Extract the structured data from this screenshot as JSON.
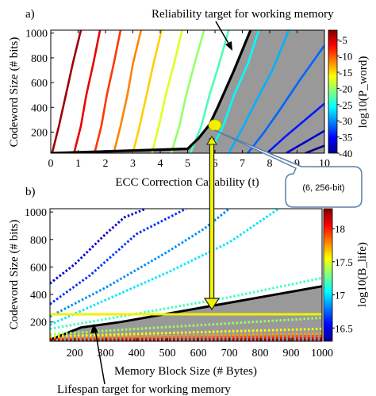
{
  "colors": {
    "shade": "#999999",
    "highlight": "#f2f200",
    "callout_stroke": "#5b7fa6"
  },
  "chart_data": [
    {
      "type": "line",
      "panel_label": "a)",
      "xlabel": "ECC Correction Capability (t)",
      "ylabel": "Codeword Size (# bits)",
      "xlim": [
        0,
        10
      ],
      "ylim": [
        30,
        1024
      ],
      "xticks": [
        0,
        1,
        2,
        3,
        4,
        5,
        6,
        7,
        8,
        9,
        10
      ],
      "yticks": [
        200,
        400,
        600,
        800,
        1000
      ],
      "colorbar": {
        "label": "log10(P_word)",
        "range": [
          -40,
          -2
        ],
        "ticks": [
          -5,
          -10,
          -15,
          -20,
          -25,
          -30,
          -35,
          -40
        ],
        "colormap": "jet"
      },
      "curve_series": [
        {
          "x": [
            0.05,
            0.3,
            0.55,
            0.8,
            1.1
          ],
          "y": [
            30,
            250,
            500,
            750,
            1024
          ]
        },
        {
          "x": [
            0.85,
            1.1,
            1.3,
            1.55,
            1.8
          ],
          "y": [
            30,
            250,
            500,
            750,
            1024
          ]
        },
        {
          "x": [
            1.6,
            1.85,
            2.05,
            2.3,
            2.55
          ],
          "y": [
            30,
            250,
            500,
            750,
            1024
          ]
        },
        {
          "x": [
            2.3,
            2.55,
            2.8,
            3.0,
            3.3
          ],
          "y": [
            30,
            250,
            500,
            750,
            1024
          ]
        },
        {
          "x": [
            3.0,
            3.25,
            3.5,
            3.75,
            4.05
          ],
          "y": [
            30,
            250,
            500,
            750,
            1024
          ]
        },
        {
          "x": [
            3.7,
            3.95,
            4.2,
            4.5,
            4.8
          ],
          "y": [
            30,
            250,
            500,
            750,
            1024
          ]
        },
        {
          "x": [
            4.4,
            4.7,
            4.95,
            5.25,
            5.6
          ],
          "y": [
            30,
            250,
            500,
            750,
            1024
          ]
        },
        {
          "x": [
            5.1,
            5.5,
            5.8,
            6.15,
            6.5
          ],
          "y": [
            30,
            250,
            500,
            750,
            1024
          ]
        },
        {
          "x": [
            5.8,
            6.3,
            6.7,
            7.2,
            7.6
          ],
          "y": [
            30,
            250,
            500,
            750,
            1024
          ]
        },
        {
          "x": [
            6.5,
            7.0,
            7.5,
            8.1,
            8.7
          ],
          "y": [
            30,
            230,
            450,
            700,
            1024
          ]
        },
        {
          "x": [
            7.2,
            7.8,
            8.4,
            9.1,
            10.0
          ],
          "y": [
            30,
            200,
            390,
            620,
            900
          ]
        },
        {
          "x": [
            7.9,
            8.6,
            9.3,
            10.0
          ],
          "y": [
            30,
            170,
            300,
            430
          ]
        },
        {
          "x": [
            8.6,
            9.3,
            10.0
          ],
          "y": [
            30,
            120,
            210
          ]
        },
        {
          "x": [
            9.3,
            10.0
          ],
          "y": [
            30,
            90
          ]
        }
      ],
      "boundary": {
        "x": [
          0,
          5.0,
          5.4,
          5.8,
          6.1,
          6.7,
          7.3
        ],
        "y": [
          30,
          65,
          150,
          260,
          400,
          700,
          1024
        ]
      },
      "highlight_point": {
        "x": 6,
        "y": 256
      },
      "annotation_top": "Reliability target for working memory",
      "callout": "(6, 256-bit)"
    },
    {
      "type": "line",
      "panel_label": "b)",
      "xlabel": "Memory Block Size (# Bytes)",
      "ylabel": "Codeword Size (# bits)",
      "xlim": [
        120,
        1000
      ],
      "ylim": [
        60,
        1024
      ],
      "xticks": [
        200,
        300,
        400,
        500,
        600,
        700,
        800,
        900,
        1000
      ],
      "yticks": [
        200,
        400,
        600,
        800,
        1000
      ],
      "colorbar": {
        "label": "log10(B_life)",
        "range": [
          16.3,
          18.3
        ],
        "ticks": [
          18,
          17.5,
          17,
          16.5
        ],
        "colormap": "jet"
      },
      "dotted_series": [
        {
          "x": [
            120,
            200,
            300,
            360,
            430
          ],
          "y": [
            480,
            620,
            840,
            960,
            1024
          ]
        },
        {
          "x": [
            120,
            250,
            400,
            560
          ],
          "y": [
            330,
            540,
            840,
            1024
          ]
        },
        {
          "x": [
            120,
            300,
            500,
            620,
            700
          ],
          "y": [
            240,
            450,
            710,
            880,
            1024
          ]
        },
        {
          "x": [
            120,
            300,
            500,
            700,
            860
          ],
          "y": [
            180,
            360,
            560,
            780,
            1024
          ]
        },
        {
          "x": [
            120,
            400,
            700,
            1000
          ],
          "y": [
            150,
            260,
            380,
            520
          ]
        },
        {
          "x": [
            120,
            400,
            700,
            1000
          ],
          "y": [
            110,
            150,
            190,
            230
          ]
        },
        {
          "x": [
            120,
            500,
            1000
          ],
          "y": [
            95,
            120,
            150
          ]
        },
        {
          "x": [
            120,
            500,
            1000
          ],
          "y": [
            82,
            98,
            115
          ]
        },
        {
          "x": [
            120,
            500,
            1000
          ],
          "y": [
            74,
            86,
            98
          ]
        },
        {
          "x": [
            120,
            1000
          ],
          "y": [
            68,
            80
          ]
        },
        {
          "x": [
            120,
            1000
          ],
          "y": [
            63,
            70
          ]
        }
      ],
      "boundary": {
        "x": [
          120,
          220,
          350,
          1000
        ],
        "y": [
          70,
          160,
          200,
          460
        ]
      },
      "target_line_y": 256,
      "annotation_bottom": "Lifespan target for working memory"
    }
  ]
}
